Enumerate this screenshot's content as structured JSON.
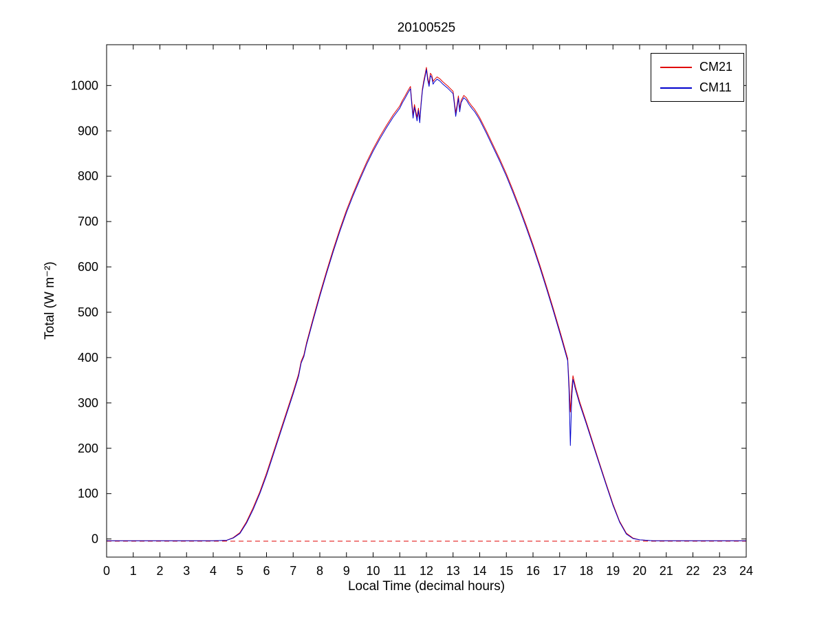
{
  "chart_data": {
    "type": "line",
    "title": "20100525",
    "xlabel": "Local Time (decimal hours)",
    "ylabel": "Total (W m⁻²)",
    "xlim": [
      0,
      24
    ],
    "ylim": [
      -40,
      1090
    ],
    "xticks": [
      0,
      1,
      2,
      3,
      4,
      5,
      6,
      7,
      8,
      9,
      10,
      11,
      12,
      13,
      14,
      15,
      16,
      17,
      18,
      19,
      20,
      21,
      22,
      23,
      24
    ],
    "yticks": [
      0,
      100,
      200,
      300,
      400,
      500,
      600,
      700,
      800,
      900,
      1000
    ],
    "grid": false,
    "legend_position": "top-right",
    "background_color": "#ffffff",
    "axis_color": "#000000",
    "x": [
      0,
      1,
      2,
      3,
      4,
      4.5,
      4.75,
      5,
      5.25,
      5.5,
      5.75,
      6,
      6.25,
      6.5,
      6.75,
      7,
      7.2,
      7.3,
      7.4,
      7.5,
      7.75,
      8,
      8.25,
      8.5,
      8.75,
      9,
      9.25,
      9.5,
      9.75,
      10,
      10.25,
      10.5,
      10.75,
      11,
      11.1,
      11.2,
      11.3,
      11.4,
      11.45,
      11.5,
      11.55,
      11.6,
      11.65,
      11.7,
      11.75,
      11.8,
      11.85,
      11.9,
      11.95,
      12,
      12.05,
      12.1,
      12.15,
      12.2,
      12.25,
      12.3,
      12.4,
      12.5,
      12.6,
      12.7,
      12.8,
      12.9,
      13,
      13.05,
      13.1,
      13.15,
      13.2,
      13.25,
      13.3,
      13.4,
      13.5,
      13.6,
      13.7,
      13.8,
      13.9,
      14,
      14.25,
      14.5,
      14.75,
      15,
      15.25,
      15.5,
      15.75,
      16,
      16.25,
      16.5,
      16.75,
      17,
      17.1,
      17.2,
      17.3,
      17.35,
      17.4,
      17.45,
      17.5,
      17.6,
      17.75,
      18,
      18.25,
      18.5,
      18.75,
      19,
      19.25,
      19.5,
      19.75,
      20,
      20.5,
      21,
      22,
      23,
      24
    ],
    "series": [
      {
        "name": "CM21",
        "color": "#e00000",
        "values": [
          -4,
          -4,
          -4,
          -4,
          -4,
          -3,
          3,
          14,
          38,
          69,
          104,
          145,
          190,
          235,
          280,
          325,
          363,
          392,
          406,
          432,
          487,
          540,
          590,
          638,
          683,
          725,
          762,
          797,
          830,
          860,
          887,
          912,
          935,
          955,
          967,
          977,
          988,
          998,
          965,
          935,
          958,
          944,
          930,
          950,
          925,
          963,
          993,
          1010,
          1025,
          1040,
          1018,
          1004,
          1027,
          1023,
          1009,
          1013,
          1019,
          1015,
          1009,
          1004,
          999,
          993,
          987,
          964,
          940,
          958,
          977,
          949,
          967,
          978,
          973,
          963,
          955,
          948,
          939,
          929,
          900,
          869,
          838,
          805,
          769,
          731,
          691,
          649,
          605,
          558,
          510,
          460,
          440,
          419,
          398,
          345,
          280,
          330,
          360,
          334,
          303,
          258,
          212,
          166,
          121,
          77,
          39,
          13,
          2,
          -2,
          -4,
          -4,
          -4,
          -4,
          -4
        ]
      },
      {
        "name": "CM11",
        "color": "#0000cd",
        "values": [
          -4,
          -4,
          -4,
          -4,
          -4,
          -3,
          2,
          12,
          35,
          65,
          100,
          140,
          185,
          230,
          275,
          320,
          358,
          388,
          402,
          428,
          482,
          535,
          585,
          633,
          678,
          720,
          757,
          792,
          825,
          855,
          882,
          907,
          930,
          950,
          962,
          972,
          983,
          993,
          958,
          928,
          952,
          938,
          922,
          945,
          918,
          958,
          988,
          1005,
          1020,
          1035,
          1012,
          998,
          1022,
          1018,
          1003,
          1008,
          1014,
          1010,
          1004,
          999,
          994,
          988,
          982,
          958,
          932,
          952,
          972,
          942,
          962,
          973,
          968,
          958,
          950,
          943,
          934,
          924,
          895,
          864,
          833,
          800,
          764,
          726,
          686,
          644,
          600,
          553,
          505,
          455,
          435,
          414,
          393,
          330,
          206,
          308,
          352,
          328,
          298,
          254,
          208,
          163,
          118,
          74,
          37,
          11,
          1,
          -2,
          -4,
          -4,
          -4,
          -4,
          -4
        ]
      }
    ],
    "reference_line": {
      "y": -5,
      "color": "#e00000",
      "style": "dashed"
    }
  }
}
